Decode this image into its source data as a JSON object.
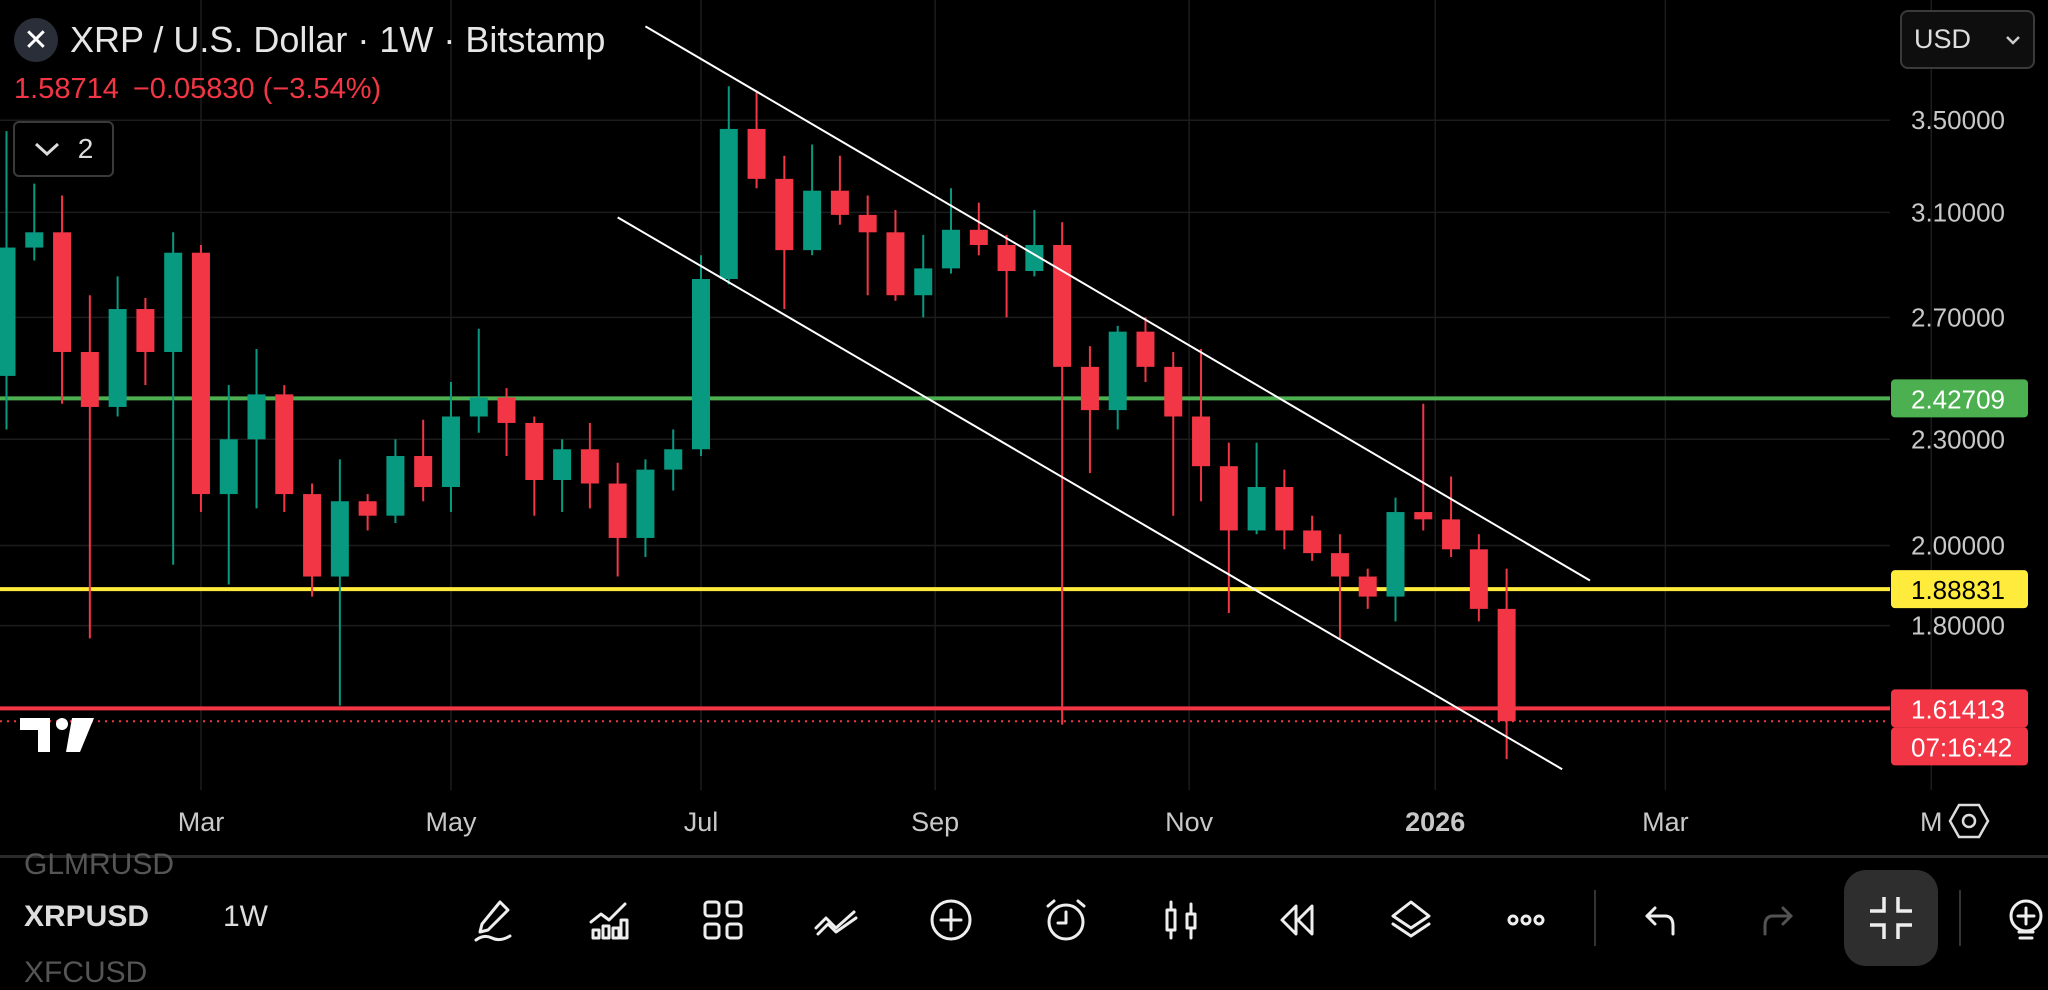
{
  "header": {
    "title": "XRP / U.S. Dollar · 1W · Bitstamp",
    "last_price": "1.58714",
    "change": "−0.05830",
    "change_pct": "(−3.54%)",
    "indicator_count": "2",
    "currency": "USD"
  },
  "colors": {
    "up": "#089981",
    "down": "#f23645",
    "support_green": "#4caf50",
    "support_yellow": "#ffeb3b",
    "level_red": "#f23645",
    "trendline": "#ffffff"
  },
  "levels": [
    {
      "price": 2.42709,
      "label": "2.42709",
      "color": "#4caf50",
      "text_color": "#ffffff"
    },
    {
      "price": 1.88831,
      "label": "1.88831",
      "color": "#ffeb3b",
      "text_color": "#000000"
    },
    {
      "price": 1.61413,
      "label": "1.61413",
      "color": "#f23645",
      "text_color": "#ffffff"
    }
  ],
  "countdown": "07:16:42",
  "bottom": {
    "symbols": [
      "GLMRUSD",
      "XRPUSD",
      "XFCUSD"
    ],
    "interval": "1W",
    "tools": [
      "draw-pencil-icon",
      "indicators-icon",
      "templates-grid-icon",
      "trend-tools-icon",
      "add-plus-icon",
      "alert-clock-icon",
      "chart-type-candle-icon",
      "replay-rewind-icon",
      "layers-icon",
      "more-icon",
      "undo-icon",
      "redo-icon",
      "exit-fullscreen-icon",
      "ideas-bulb-icon"
    ]
  },
  "chart_data": {
    "type": "candlestick",
    "title": "XRP / U.S. Dollar · 1W · Bitstamp",
    "y_scale": "log",
    "ylim": [
      1.45,
      3.95
    ],
    "grid": true,
    "y_ticks": [
      "3.50000",
      "3.10000",
      "2.70000",
      "2.30000",
      "2.00000",
      "1.80000"
    ],
    "x_ticks": [
      {
        "label": "Mar",
        "date": "2025-02-24"
      },
      {
        "label": "May",
        "date": "2025-04-28"
      },
      {
        "label": "Jul",
        "date": "2025-06-30"
      },
      {
        "label": "Sep",
        "date": "2025-08-28"
      },
      {
        "label": "Nov",
        "date": "2025-10-31"
      },
      {
        "label": "2026",
        "date": "2026-01-01"
      },
      {
        "label": "Mar",
        "date": "2026-02-28"
      },
      {
        "label": "M",
        "date": "2026-05-06"
      }
    ],
    "columns": [
      "date",
      "open",
      "high",
      "low",
      "close"
    ],
    "candles": [
      [
        "2025-01-06",
        2.5,
        3.45,
        2.33,
        2.96
      ],
      [
        "2025-01-13",
        2.96,
        3.22,
        2.91,
        3.02
      ],
      [
        "2025-01-20",
        3.02,
        3.17,
        2.41,
        2.58
      ],
      [
        "2025-01-27",
        2.58,
        2.78,
        1.77,
        2.4
      ],
      [
        "2025-02-03",
        2.4,
        2.85,
        2.37,
        2.73
      ],
      [
        "2025-02-10",
        2.73,
        2.77,
        2.47,
        2.58
      ],
      [
        "2025-02-17",
        2.58,
        3.02,
        1.95,
        2.94
      ],
      [
        "2025-02-24",
        2.94,
        2.97,
        2.09,
        2.14
      ],
      [
        "2025-03-03",
        2.14,
        2.47,
        1.9,
        2.3
      ],
      [
        "2025-03-10",
        2.3,
        2.59,
        2.1,
        2.44
      ],
      [
        "2025-03-17",
        2.44,
        2.47,
        2.09,
        2.14
      ],
      [
        "2025-03-24",
        2.14,
        2.17,
        1.87,
        1.92
      ],
      [
        "2025-03-31",
        1.92,
        2.24,
        1.62,
        2.12
      ],
      [
        "2025-04-07",
        2.12,
        2.14,
        2.04,
        2.08
      ],
      [
        "2025-04-14",
        2.08,
        2.3,
        2.06,
        2.25
      ],
      [
        "2025-04-21",
        2.25,
        2.36,
        2.12,
        2.16
      ],
      [
        "2025-04-28",
        2.16,
        2.48,
        2.09,
        2.37
      ],
      [
        "2025-05-05",
        2.37,
        2.66,
        2.32,
        2.43
      ],
      [
        "2025-05-12",
        2.43,
        2.46,
        2.25,
        2.35
      ],
      [
        "2025-05-19",
        2.35,
        2.37,
        2.08,
        2.18
      ],
      [
        "2025-05-26",
        2.18,
        2.3,
        2.09,
        2.27
      ],
      [
        "2025-06-02",
        2.27,
        2.35,
        2.1,
        2.17
      ],
      [
        "2025-06-09",
        2.17,
        2.23,
        1.92,
        2.02
      ],
      [
        "2025-06-16",
        2.02,
        2.24,
        1.97,
        2.21
      ],
      [
        "2025-06-23",
        2.21,
        2.33,
        2.15,
        2.27
      ],
      [
        "2025-06-30",
        2.27,
        2.93,
        2.25,
        2.84
      ],
      [
        "2025-07-07",
        2.84,
        3.66,
        2.82,
        3.46
      ],
      [
        "2025-07-14",
        3.46,
        3.63,
        3.2,
        3.24
      ],
      [
        "2025-07-21",
        3.24,
        3.34,
        2.73,
        2.95
      ],
      [
        "2025-07-28",
        2.95,
        3.39,
        2.93,
        3.19
      ],
      [
        "2025-08-04",
        3.19,
        3.34,
        3.05,
        3.09
      ],
      [
        "2025-08-11",
        3.09,
        3.17,
        2.78,
        3.02
      ],
      [
        "2025-08-18",
        3.02,
        3.11,
        2.76,
        2.78
      ],
      [
        "2025-08-25",
        2.78,
        3.01,
        2.7,
        2.88
      ],
      [
        "2025-09-01",
        2.88,
        3.2,
        2.86,
        3.03
      ],
      [
        "2025-09-08",
        3.03,
        3.14,
        2.93,
        2.97
      ],
      [
        "2025-09-15",
        2.97,
        3.01,
        2.7,
        2.87
      ],
      [
        "2025-09-22",
        2.87,
        3.11,
        2.85,
        2.97
      ],
      [
        "2025-09-29",
        2.97,
        3.06,
        1.58,
        2.53
      ],
      [
        "2025-10-06",
        2.53,
        2.6,
        2.2,
        2.39
      ],
      [
        "2025-10-13",
        2.39,
        2.67,
        2.33,
        2.65
      ],
      [
        "2025-10-20",
        2.65,
        2.7,
        2.48,
        2.53
      ],
      [
        "2025-10-27",
        2.53,
        2.58,
        2.08,
        2.37
      ],
      [
        "2025-11-03",
        2.37,
        2.59,
        2.12,
        2.22
      ],
      [
        "2025-11-10",
        2.22,
        2.29,
        1.83,
        2.04
      ],
      [
        "2025-11-17",
        2.04,
        2.29,
        2.03,
        2.16
      ],
      [
        "2025-11-24",
        2.16,
        2.21,
        1.99,
        2.04
      ],
      [
        "2025-12-01",
        2.04,
        2.08,
        1.96,
        1.98
      ],
      [
        "2025-12-08",
        1.98,
        2.03,
        1.77,
        1.92
      ],
      [
        "2025-12-15",
        1.92,
        1.94,
        1.84,
        1.87
      ],
      [
        "2025-12-22",
        1.87,
        2.13,
        1.81,
        2.09
      ],
      [
        "2025-12-29",
        2.09,
        2.41,
        2.04,
        2.07
      ],
      [
        "2026-01-05",
        2.07,
        2.19,
        1.97,
        1.99
      ],
      [
        "2026-01-12",
        1.99,
        2.03,
        1.81,
        1.84
      ],
      [
        "2026-01-19",
        1.84,
        1.94,
        1.51,
        1.58714
      ]
    ],
    "trendlines": [
      {
        "from": [
          "2025-06-16",
          3.96
        ],
        "to": [
          "2026-02-09",
          1.91
        ]
      },
      {
        "from": [
          "2025-06-09",
          3.08
        ],
        "to": [
          "2026-02-02",
          1.49
        ]
      }
    ]
  }
}
